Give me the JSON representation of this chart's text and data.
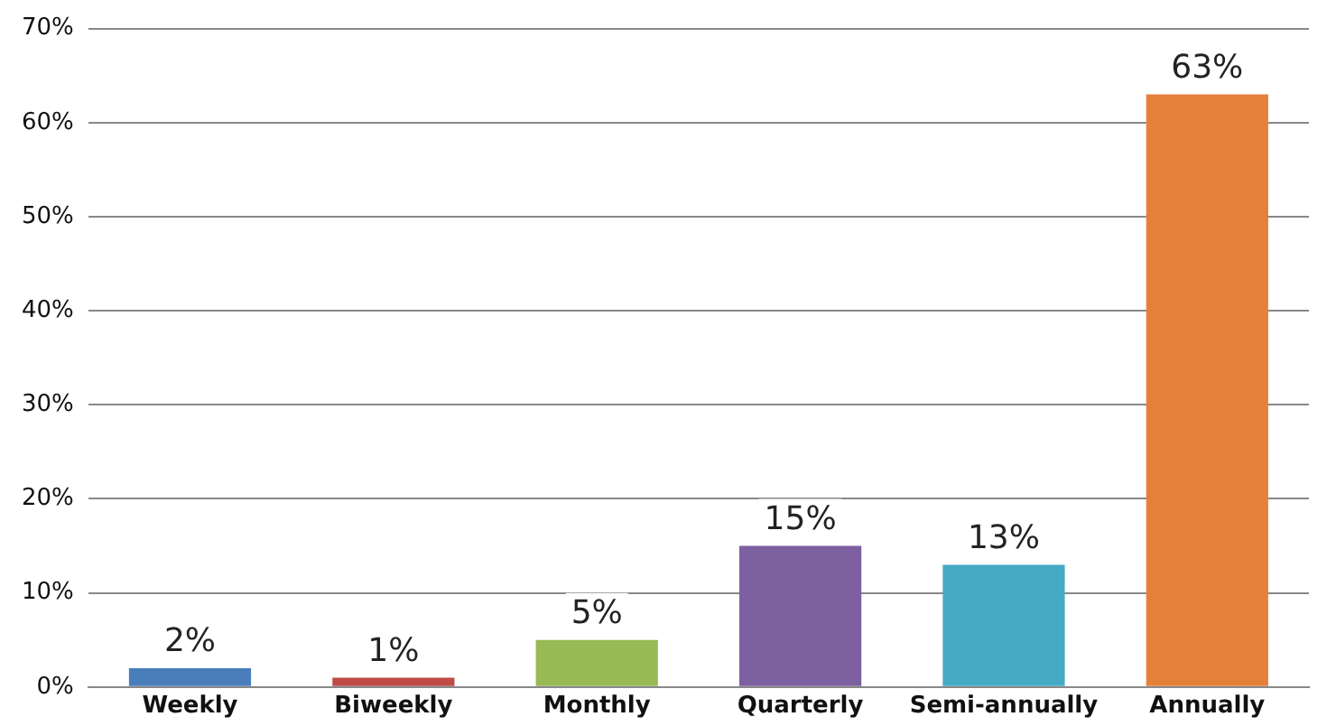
{
  "chart_data": {
    "type": "bar",
    "categories": [
      "Weekly",
      "Biweekly",
      "Monthly",
      "Quarterly",
      "Semi-annually",
      "Annually"
    ],
    "values": [
      2,
      1,
      5,
      15,
      13,
      63
    ],
    "colors": [
      "#4a7ebb",
      "#be4b48",
      "#98b954",
      "#7d60a0",
      "#46aac5",
      "#e5803a"
    ],
    "value_labels": [
      "2%",
      "1%",
      "5%",
      "15%",
      "13%",
      "63%"
    ],
    "ylim": [
      0,
      70
    ],
    "yticks": [
      {
        "value": 0,
        "label": "0%"
      },
      {
        "value": 10,
        "label": "10%"
      },
      {
        "value": 20,
        "label": "20%"
      },
      {
        "value": 30,
        "label": "30%"
      },
      {
        "value": 40,
        "label": "40%"
      },
      {
        "value": 50,
        "label": "50%"
      },
      {
        "value": 60,
        "label": "60%"
      },
      {
        "value": 70,
        "label": "70%"
      }
    ],
    "grid": "y",
    "legend": false
  }
}
